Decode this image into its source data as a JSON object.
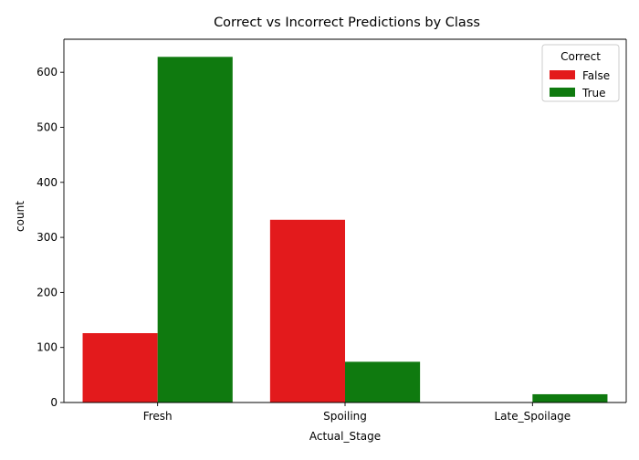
{
  "chart_data": {
    "type": "bar",
    "title": "Correct vs Incorrect Predictions by Class",
    "xlabel": "Actual_Stage",
    "ylabel": "count",
    "categories": [
      "Fresh",
      "Spoiling",
      "Late_Spoilage"
    ],
    "series": [
      {
        "name": "False",
        "values": [
          126,
          332,
          0
        ],
        "color": "#e31a1c"
      },
      {
        "name": "True",
        "values": [
          628,
          74,
          15
        ],
        "color": "#0f7a0f"
      }
    ],
    "ylim": [
      0,
      660
    ],
    "yticks": [
      0,
      100,
      200,
      300,
      400,
      500,
      600
    ],
    "grid": false,
    "legend": {
      "title": "Correct",
      "placement": "top-right"
    }
  }
}
